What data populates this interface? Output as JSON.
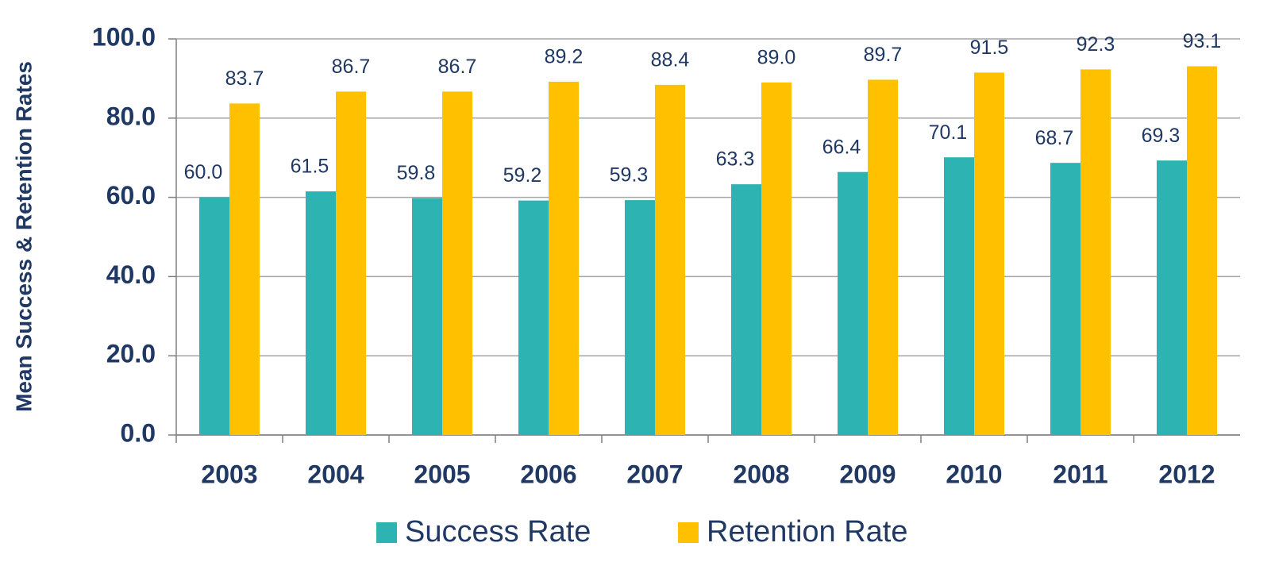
{
  "chart_data": {
    "type": "bar",
    "y_label": "Mean Success & Retention Rates",
    "categories": [
      "2003",
      "2004",
      "2005",
      "2006",
      "2007",
      "2008",
      "2009",
      "2010",
      "2011",
      "2012"
    ],
    "series": [
      {
        "name": "Success Rate",
        "color": "#2eb3b3",
        "values": [
          60.0,
          61.5,
          59.8,
          59.2,
          59.3,
          63.3,
          66.4,
          70.1,
          68.7,
          69.3
        ],
        "value_labels": [
          "60.0",
          "61.5",
          "59.8",
          "59.2",
          "59.3",
          "63.3",
          "66.4",
          "70.1",
          "68.7",
          "69.3"
        ]
      },
      {
        "name": "Retention Rate",
        "color": "#ffc000",
        "values": [
          83.7,
          86.7,
          86.7,
          89.2,
          88.4,
          89.0,
          89.7,
          91.5,
          92.3,
          93.1
        ],
        "value_labels": [
          "83.7",
          "86.7",
          "86.7",
          "89.2",
          "88.4",
          "89.0",
          "89.7",
          "91.5",
          "92.3",
          "93.1"
        ]
      }
    ],
    "ylim": [
      0,
      100
    ],
    "yticks": [
      {
        "value": 0,
        "label": "0.0"
      },
      {
        "value": 20,
        "label": "20.0"
      },
      {
        "value": 40,
        "label": "40.0"
      },
      {
        "value": 60,
        "label": "60.0"
      },
      {
        "value": 80,
        "label": "80.0"
      },
      {
        "value": 100,
        "label": "100.0"
      }
    ],
    "grid": true,
    "legend": "bottom"
  }
}
